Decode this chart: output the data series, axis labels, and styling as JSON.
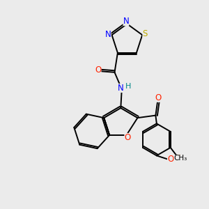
{
  "bg_color": "#ebebeb",
  "atom_colors": {
    "N": "#0000ff",
    "O": "#ff2200",
    "S": "#bbaa00",
    "Br": "#cc6600",
    "C": "#000000",
    "H": "#008888"
  }
}
